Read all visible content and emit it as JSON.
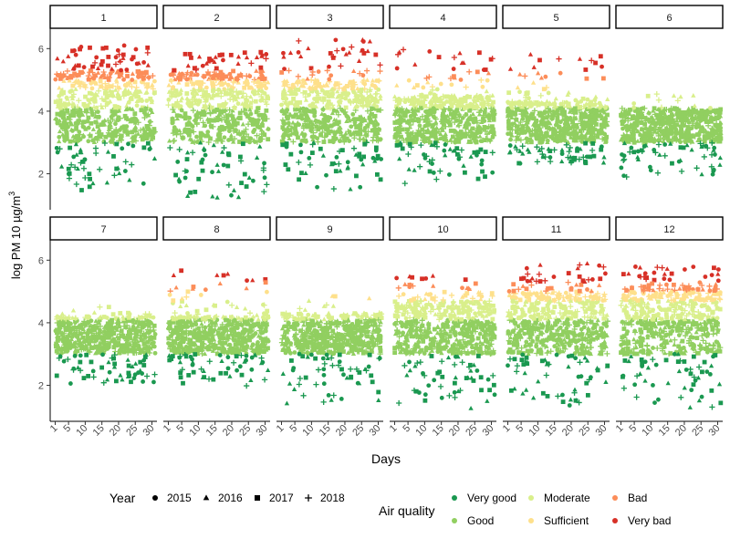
{
  "chart_data": {
    "type": "scatter",
    "facet_variable": "Month",
    "panels": [
      "1",
      "2",
      "3",
      "4",
      "5",
      "6",
      "7",
      "8",
      "9",
      "10",
      "11",
      "12"
    ],
    "xlabel": "Days",
    "ylabel": "log PM 10 µg/m",
    "ylabel_superscript": "3",
    "x_ticks": [
      1,
      5,
      10,
      15,
      20,
      25,
      30
    ],
    "y_ticks": [
      2,
      4,
      6
    ],
    "x_range": [
      -0.5,
      31.5
    ],
    "y_range": [
      0.85,
      6.65
    ],
    "grid": false,
    "legend_position": "bottom",
    "year_legend": {
      "title": "Year",
      "entries": [
        {
          "label": "2015",
          "shape": "circle"
        },
        {
          "label": "2016",
          "shape": "triangle"
        },
        {
          "label": "2017",
          "shape": "square"
        },
        {
          "label": "2018",
          "shape": "plus"
        }
      ]
    },
    "quality_legend": {
      "title": "Air quality",
      "entries": [
        {
          "label": "Very good",
          "color": "#1a9850"
        },
        {
          "label": "Good",
          "color": "#91cf60"
        },
        {
          "label": "Moderate",
          "color": "#d9ef8b"
        },
        {
          "label": "Sufficient",
          "color": "#fee08b"
        },
        {
          "label": "Bad",
          "color": "#fc8d59"
        },
        {
          "label": "Very bad",
          "color": "#d73027"
        }
      ]
    },
    "quality_bands": [
      {
        "class": "Very good",
        "ymin": 0,
        "ymax": 3.0
      },
      {
        "class": "Good",
        "ymin": 3.0,
        "ymax": 4.1
      },
      {
        "class": "Moderate",
        "ymin": 4.1,
        "ymax": 4.7
      },
      {
        "class": "Sufficient",
        "ymin": 4.7,
        "ymax": 5.0
      },
      {
        "class": "Bad",
        "ymin": 5.0,
        "ymax": 5.3
      },
      {
        "class": "Very bad",
        "ymin": 5.3,
        "ymax": 7.0
      }
    ],
    "monthly_ranges": [
      {
        "month": "1",
        "typical": [
          3.0,
          5.3
        ],
        "observed": [
          1.4,
          6.1
        ]
      },
      {
        "month": "2",
        "typical": [
          3.0,
          5.2
        ],
        "observed": [
          1.2,
          5.9
        ]
      },
      {
        "month": "3",
        "typical": [
          3.0,
          5.0
        ],
        "observed": [
          1.4,
          6.3
        ]
      },
      {
        "month": "4",
        "typical": [
          3.0,
          4.5
        ],
        "observed": [
          1.6,
          6.0
        ]
      },
      {
        "month": "5",
        "typical": [
          3.0,
          4.3
        ],
        "observed": [
          2.3,
          5.9
        ]
      },
      {
        "month": "6",
        "typical": [
          3.0,
          4.1
        ],
        "observed": [
          1.8,
          4.6
        ]
      },
      {
        "month": "7",
        "typical": [
          3.0,
          4.2
        ],
        "observed": [
          2.0,
          4.6
        ]
      },
      {
        "month": "8",
        "typical": [
          3.0,
          4.2
        ],
        "observed": [
          1.9,
          5.7
        ]
      },
      {
        "month": "9",
        "typical": [
          3.0,
          4.3
        ],
        "observed": [
          1.2,
          4.9
        ]
      },
      {
        "month": "10",
        "typical": [
          3.0,
          4.7
        ],
        "observed": [
          1.2,
          5.5
        ]
      },
      {
        "month": "11",
        "typical": [
          3.0,
          5.0
        ],
        "observed": [
          1.3,
          5.9
        ]
      },
      {
        "month": "12",
        "typical": [
          3.0,
          5.1
        ],
        "observed": [
          1.2,
          5.8
        ]
      }
    ]
  }
}
